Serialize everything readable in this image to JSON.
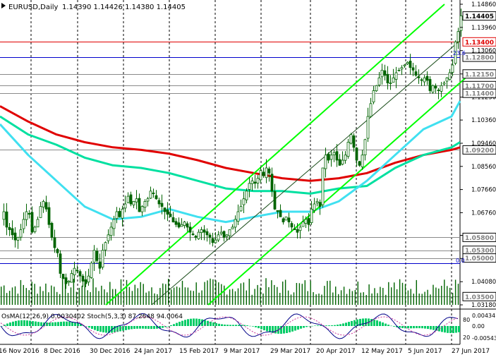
{
  "header": {
    "symbol": "EURUSD,Daily",
    "ohlc": "1.14390 1.14426 1.14380 1.14405"
  },
  "indicator_header": "OsMA(12,26,9) 0.0030402  Stoch(5,3,3) 87.2648 94.0064",
  "fib_labels": {
    "upper": "23.6",
    "lower": "0.0"
  },
  "colors": {
    "background": "#ffffff",
    "candle": "#006400",
    "grid": "#000000",
    "channel": "#00ff00",
    "ma_red": "#e00000",
    "ma_teal": "#00e0a0",
    "ma_cyan": "#40e0f0",
    "level_red": "#e00000",
    "level_blue": "#0000cc",
    "price_box_bg": "#ffffff"
  },
  "chart_data": {
    "type": "candlestick",
    "symbol": "EURUSD",
    "timeframe": "Daily",
    "y_axis_ticks": [
      "1.14860",
      "1.13960",
      "1.13060",
      "1.12150",
      "1.11250",
      "1.10360",
      "1.09460",
      "1.08560",
      "1.07660",
      "1.06760",
      "1.05880",
      "1.04980",
      "1.04080",
      "1.03180"
    ],
    "ylim": [
      1.0318,
      1.1486
    ],
    "x_axis_labels": [
      "16 Nov 2016",
      "8 Dec 2016",
      "30 Dec 2016",
      "24 Jan 2017",
      "15 Feb 2017",
      "9 Mar 2017",
      "29 Mar 2017",
      "20 Apr 2017",
      "12 May 2017",
      "5 Jun 2017",
      "27 Jun 2017"
    ],
    "price_levels": [
      {
        "label": "1.14405",
        "value": 1.14405,
        "style": "current"
      },
      {
        "label": "1.13400",
        "value": 1.134,
        "style": "red"
      },
      {
        "label": "1.12800",
        "value": 1.128,
        "style": "gray"
      },
      {
        "label": "1.12150",
        "value": 1.1215,
        "style": "gray"
      },
      {
        "label": "1.11700",
        "value": 1.117,
        "style": "gray"
      },
      {
        "label": "1.11400",
        "value": 1.114,
        "style": "gray"
      },
      {
        "label": "1.09200",
        "value": 1.092,
        "style": "gray"
      },
      {
        "label": "1.05800",
        "value": 1.058,
        "style": "gray"
      },
      {
        "label": "1.05300",
        "value": 1.053,
        "style": "gray"
      },
      {
        "label": "1.05000",
        "value": 1.05,
        "style": "gray"
      },
      {
        "label": "1.03500",
        "value": 1.035,
        "style": "gray"
      }
    ],
    "close_path": [
      [
        0,
        1.065
      ],
      [
        4,
        1.068
      ],
      [
        8,
        1.062
      ],
      [
        12,
        1.061
      ],
      [
        16,
        1.059
      ],
      [
        20,
        1.057
      ],
      [
        24,
        1.058
      ],
      [
        28,
        1.061
      ],
      [
        32,
        1.065
      ],
      [
        36,
        1.068
      ],
      [
        40,
        1.067
      ],
      [
        44,
        1.06
      ],
      [
        48,
        1.062
      ],
      [
        52,
        1.065
      ],
      [
        56,
        1.07
      ],
      [
        60,
        1.072
      ],
      [
        64,
        1.069
      ],
      [
        68,
        1.063
      ],
      [
        72,
        1.058
      ],
      [
        76,
        1.054
      ],
      [
        80,
        1.052
      ],
      [
        84,
        1.044
      ],
      [
        88,
        1.042
      ],
      [
        92,
        1.04
      ],
      [
        96,
        1.041
      ],
      [
        100,
        1.044
      ],
      [
        104,
        1.046
      ],
      [
        108,
        1.045
      ],
      [
        112,
        1.043
      ],
      [
        116,
        1.041
      ],
      [
        120,
        1.04
      ],
      [
        124,
        1.043
      ],
      [
        128,
        1.048
      ],
      [
        132,
        1.053
      ],
      [
        136,
        1.049
      ],
      [
        140,
        1.046
      ],
      [
        144,
        1.053
      ],
      [
        148,
        1.056
      ],
      [
        152,
        1.059
      ],
      [
        156,
        1.062
      ],
      [
        160,
        1.065
      ],
      [
        164,
        1.068
      ],
      [
        168,
        1.066
      ],
      [
        172,
        1.069
      ],
      [
        176,
        1.071
      ],
      [
        180,
        1.074
      ],
      [
        184,
        1.071
      ],
      [
        188,
        1.072
      ],
      [
        192,
        1.073
      ],
      [
        196,
        1.068
      ],
      [
        200,
        1.07
      ],
      [
        204,
        1.072
      ],
      [
        208,
        1.073
      ],
      [
        212,
        1.076
      ],
      [
        216,
        1.075
      ],
      [
        220,
        1.073
      ],
      [
        224,
        1.071
      ],
      [
        228,
        1.07
      ],
      [
        232,
        1.068
      ],
      [
        236,
        1.067
      ],
      [
        240,
        1.066
      ],
      [
        244,
        1.064
      ],
      [
        248,
        1.063
      ],
      [
        252,
        1.062
      ],
      [
        256,
        1.063
      ],
      [
        260,
        1.064
      ],
      [
        264,
        1.062
      ],
      [
        268,
        1.06
      ],
      [
        272,
        1.059
      ],
      [
        276,
        1.058
      ],
      [
        280,
        1.06
      ],
      [
        284,
        1.061
      ],
      [
        288,
        1.06
      ],
      [
        292,
        1.059
      ],
      [
        296,
        1.058
      ],
      [
        300,
        1.056
      ],
      [
        304,
        1.057
      ],
      [
        308,
        1.059
      ],
      [
        312,
        1.06
      ],
      [
        316,
        1.058
      ],
      [
        320,
        1.059
      ],
      [
        324,
        1.061
      ],
      [
        328,
        1.062
      ],
      [
        332,
        1.065
      ],
      [
        336,
        1.068
      ],
      [
        340,
        1.07
      ],
      [
        344,
        1.073
      ],
      [
        348,
        1.076
      ],
      [
        352,
        1.079
      ],
      [
        356,
        1.08
      ],
      [
        360,
        1.079
      ],
      [
        364,
        1.081
      ],
      [
        368,
        1.084
      ],
      [
        372,
        1.082
      ],
      [
        376,
        1.085
      ],
      [
        380,
        1.083
      ],
      [
        384,
        1.076
      ],
      [
        388,
        1.069
      ],
      [
        392,
        1.068
      ],
      [
        396,
        1.066
      ],
      [
        400,
        1.064
      ],
      [
        404,
        1.066
      ],
      [
        408,
        1.064
      ],
      [
        412,
        1.062
      ],
      [
        416,
        1.061
      ],
      [
        420,
        1.06
      ],
      [
        424,
        1.062
      ],
      [
        428,
        1.064
      ],
      [
        432,
        1.065
      ],
      [
        436,
        1.063
      ],
      [
        440,
        1.069
      ],
      [
        444,
        1.071
      ],
      [
        448,
        1.072
      ],
      [
        452,
        1.07
      ],
      [
        456,
        1.085
      ],
      [
        460,
        1.09
      ],
      [
        464,
        1.088
      ],
      [
        468,
        1.09
      ],
      [
        472,
        1.091
      ],
      [
        476,
        1.088
      ],
      [
        480,
        1.086
      ],
      [
        484,
        1.088
      ],
      [
        488,
        1.09
      ],
      [
        492,
        1.095
      ],
      [
        496,
        1.098
      ],
      [
        500,
        1.093
      ],
      [
        504,
        1.088
      ],
      [
        508,
        1.086
      ],
      [
        512,
        1.09
      ],
      [
        516,
        1.096
      ],
      [
        520,
        1.105
      ],
      [
        524,
        1.11
      ],
      [
        528,
        1.115
      ],
      [
        532,
        1.117
      ],
      [
        536,
        1.12
      ],
      [
        540,
        1.123
      ],
      [
        544,
        1.121
      ],
      [
        548,
        1.118
      ],
      [
        552,
        1.118
      ],
      [
        556,
        1.12
      ],
      [
        560,
        1.122
      ],
      [
        564,
        1.123
      ],
      [
        568,
        1.124
      ],
      [
        572,
        1.125
      ],
      [
        576,
        1.126
      ],
      [
        580,
        1.124
      ],
      [
        584,
        1.123
      ],
      [
        588,
        1.121
      ],
      [
        592,
        1.12
      ],
      [
        596,
        1.119
      ],
      [
        600,
        1.12
      ],
      [
        604,
        1.119
      ],
      [
        608,
        1.115
      ],
      [
        612,
        1.117
      ],
      [
        616,
        1.116
      ],
      [
        620,
        1.115
      ],
      [
        624,
        1.117
      ],
      [
        628,
        1.118
      ],
      [
        632,
        1.12
      ],
      [
        636,
        1.122
      ],
      [
        640,
        1.125
      ],
      [
        644,
        1.134
      ],
      [
        648,
        1.138
      ],
      [
        652,
        1.1441
      ]
    ],
    "ma_red": [
      [
        0,
        1.109
      ],
      [
        40,
        1.103
      ],
      [
        80,
        1.098
      ],
      [
        120,
        1.095
      ],
      [
        160,
        1.093
      ],
      [
        200,
        1.092
      ],
      [
        240,
        1.0905
      ],
      [
        280,
        1.088
      ],
      [
        320,
        1.085
      ],
      [
        360,
        1.083
      ],
      [
        400,
        1.081
      ],
      [
        440,
        1.08
      ],
      [
        480,
        1.081
      ],
      [
        520,
        1.083
      ],
      [
        560,
        1.087
      ],
      [
        600,
        1.09
      ],
      [
        640,
        1.092
      ],
      [
        652,
        1.093
      ]
    ],
    "ma_teal": [
      [
        0,
        1.105
      ],
      [
        40,
        1.098
      ],
      [
        80,
        1.094
      ],
      [
        120,
        1.089
      ],
      [
        160,
        1.086
      ],
      [
        200,
        1.085
      ],
      [
        240,
        1.083
      ],
      [
        280,
        1.08
      ],
      [
        320,
        1.077
      ],
      [
        360,
        1.076
      ],
      [
        400,
        1.076
      ],
      [
        440,
        1.075
      ],
      [
        480,
        1.077
      ],
      [
        520,
        1.078
      ],
      [
        560,
        1.085
      ],
      [
        600,
        1.09
      ],
      [
        640,
        1.093
      ],
      [
        652,
        1.095
      ]
    ],
    "ma_cyan": [
      [
        0,
        1.102
      ],
      [
        40,
        1.09
      ],
      [
        80,
        1.08
      ],
      [
        120,
        1.07
      ],
      [
        160,
        1.065
      ],
      [
        200,
        1.066
      ],
      [
        240,
        1.069
      ],
      [
        280,
        1.066
      ],
      [
        320,
        1.064
      ],
      [
        360,
        1.066
      ],
      [
        400,
        1.068
      ],
      [
        440,
        1.068
      ],
      [
        480,
        1.072
      ],
      [
        520,
        1.08
      ],
      [
        560,
        1.09
      ],
      [
        600,
        1.1
      ],
      [
        640,
        1.105
      ],
      [
        652,
        1.111
      ]
    ],
    "channel_lines": [
      {
        "name": "channel-upper",
        "from": [
          150,
          1.0318
        ],
        "to": [
          630,
          1.1486
        ]
      },
      {
        "name": "channel-lower",
        "from": [
          295,
          1.0318
        ],
        "to": [
          660,
          1.12
        ]
      },
      {
        "name": "channel-mid",
        "from": [
          215,
          1.0318
        ],
        "to": [
          650,
          1.134
        ]
      }
    ],
    "vertical_grid_x": [
      44,
      110,
      175,
      240,
      305,
      370,
      440,
      505,
      575,
      640
    ],
    "volume_bars_count": 165,
    "osma_scale": {
      "ticks": [
        "0.00434",
        "0.00",
        "-0.00543"
      ]
    },
    "stoch_scale": {
      "ticks": [
        "80",
        "20"
      ]
    }
  }
}
